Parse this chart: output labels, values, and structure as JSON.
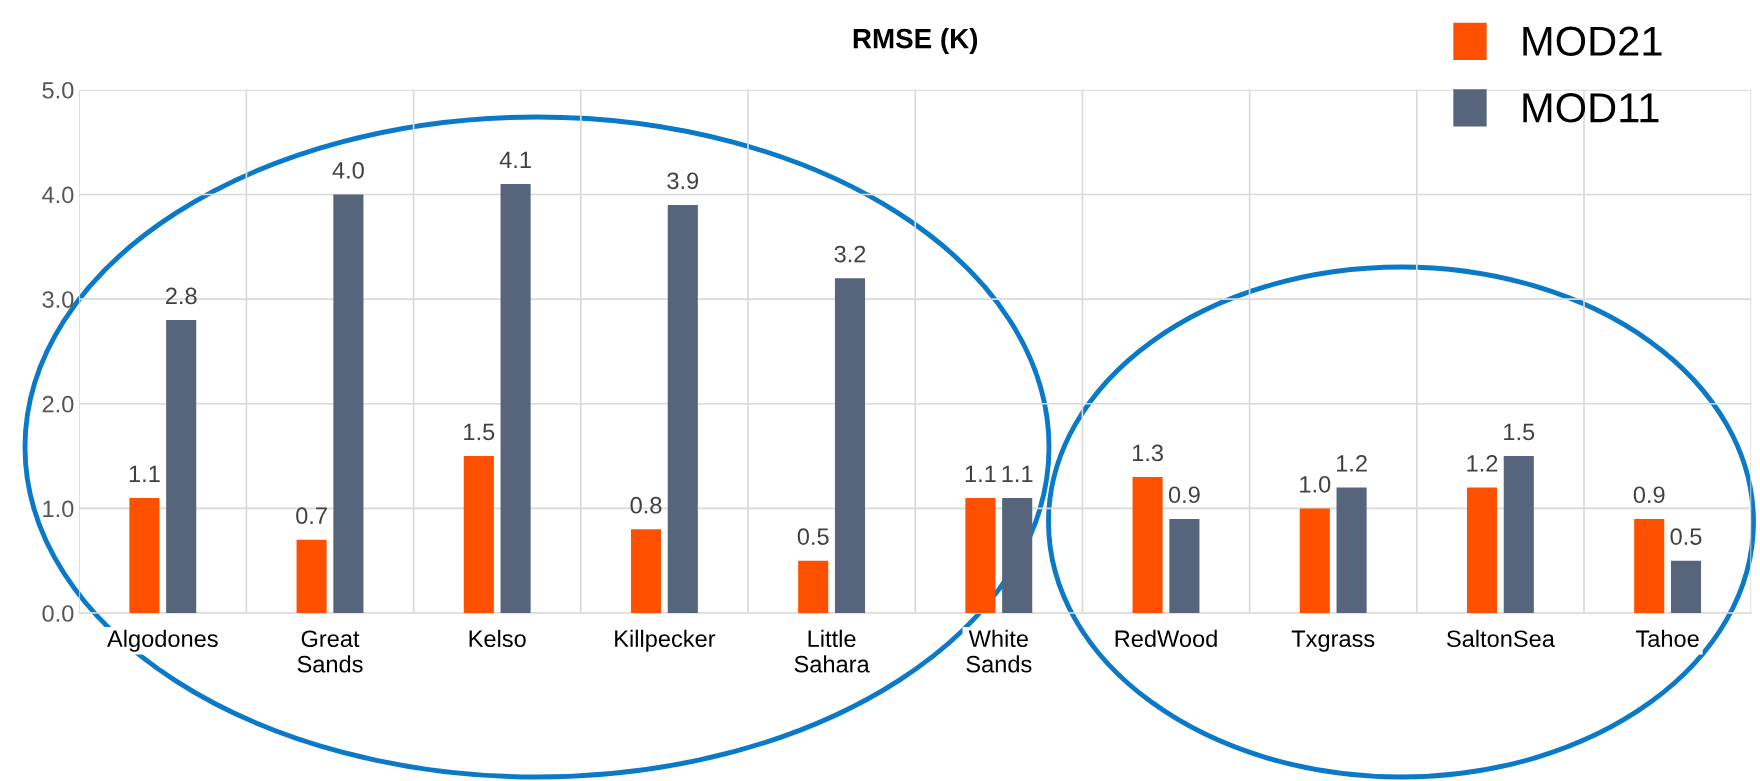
{
  "chart_data": {
    "type": "bar",
    "title": "RMSE (K)",
    "categories": [
      "Algodones",
      "Great\nSands",
      "Kelso",
      "Killpecker",
      "Little\nSahara",
      "White\nSands",
      "RedWood",
      "Txgrass",
      "SaltonSea",
      "Tahoe"
    ],
    "series": [
      {
        "name": "MOD21",
        "color": "#ff5000",
        "values": [
          1.1,
          0.7,
          1.5,
          0.8,
          0.5,
          1.1,
          1.3,
          1.0,
          1.2,
          0.9
        ],
        "value_labels": [
          "1.1",
          "0.7",
          "1.5",
          "0.8",
          "0.5",
          "1.1",
          "1.3",
          "1.0",
          "1.2",
          "0.9"
        ]
      },
      {
        "name": "MOD11",
        "color": "#56657c",
        "values": [
          2.8,
          4.0,
          4.1,
          3.9,
          3.2,
          1.1,
          0.9,
          1.2,
          1.5,
          0.5
        ],
        "value_labels": [
          "2.8",
          "4.0",
          "4.1",
          "3.9",
          "3.2",
          "1.1",
          "0.9",
          "1.2",
          "1.5",
          "0.5"
        ]
      }
    ],
    "ylim": [
      0,
      5
    ],
    "yticks": [
      {
        "value": 0,
        "label": "0.0"
      },
      {
        "value": 1,
        "label": "1.0"
      },
      {
        "value": 2,
        "label": "2.0"
      },
      {
        "value": 3,
        "label": "3.0"
      },
      {
        "value": 4,
        "label": "4.0"
      },
      {
        "value": 5,
        "label": "5.0"
      }
    ],
    "grid": true,
    "legend": "top right"
  }
}
